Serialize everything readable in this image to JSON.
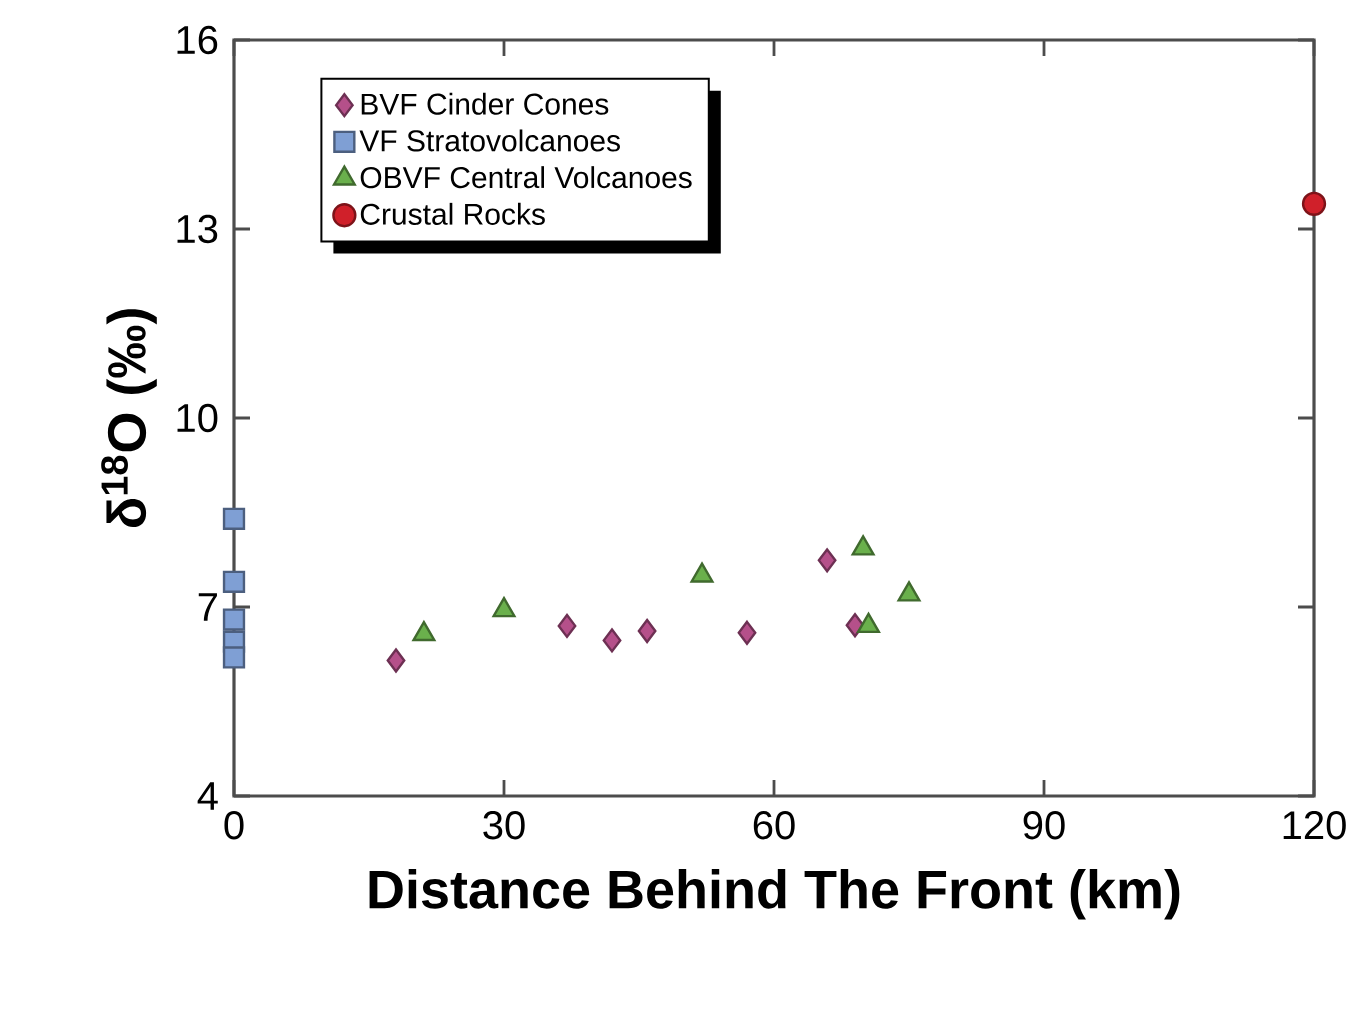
{
  "chart_data": {
    "type": "scatter",
    "xlabel": "Distance Behind The Front (km)",
    "ylabel": "δ$^{18}$O (‰)",
    "xlim": [
      0,
      120
    ],
    "ylim": [
      4,
      16
    ],
    "xticks": [
      0,
      30,
      60,
      90,
      120
    ],
    "yticks": [
      4,
      7,
      10,
      13,
      16
    ],
    "grid": false,
    "legend": "top left",
    "series": [
      {
        "name": "BVF Cinder Cones",
        "color": "#b5508a",
        "marker": "diamond",
        "x": [
          18,
          37,
          42,
          45.9,
          57,
          65.9,
          69
        ],
        "values": [
          6.15,
          6.7,
          6.47,
          6.62,
          6.59,
          7.74,
          6.71
        ]
      },
      {
        "name": "VF Stratovolcanoes",
        "color": "#7f9fd4",
        "marker": "square",
        "x": [
          0,
          0,
          0,
          0,
          0
        ],
        "values": [
          8.4,
          7.4,
          6.8,
          6.45,
          6.2
        ]
      },
      {
        "name": "OBVF Central Volcanoes",
        "color": "#6ab04c",
        "marker": "triangle",
        "x": [
          21.1,
          30,
          52,
          69.9,
          70.5,
          75
        ],
        "values": [
          6.57,
          6.95,
          7.5,
          7.93,
          6.7,
          7.2
        ]
      },
      {
        "name": "Crustal Rocks",
        "color": "#d0202a",
        "marker": "circle",
        "x": [
          120
        ],
        "values": [
          13.4
        ]
      }
    ]
  }
}
